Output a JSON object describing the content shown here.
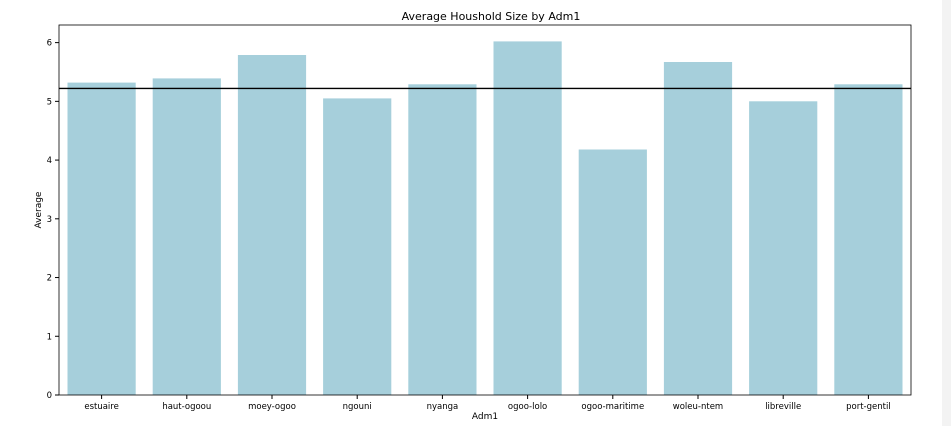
{
  "chart_data": {
    "type": "bar",
    "title": "Average Houshold Size by Adm1",
    "xlabel": "Adm1",
    "ylabel": "Average",
    "categories": [
      "estuaire",
      "haut-ogoou",
      "moey-ogoo",
      "ngouni",
      "nyanga",
      "ogoo-lolo",
      "ogoo-maritime",
      "woleu-ntem",
      "libreville",
      "port-gentil"
    ],
    "values": [
      5.32,
      5.39,
      5.79,
      5.05,
      5.29,
      6.02,
      4.18,
      5.67,
      5.0,
      5.29
    ],
    "reference_line": 5.22,
    "ylim": [
      0,
      6.3
    ],
    "yticks": [
      0,
      1,
      2,
      3,
      4,
      5,
      6
    ],
    "grid": false,
    "colors": {
      "bar": "#a6cfdb",
      "reference_line": "#000000",
      "axis": "#000000"
    }
  }
}
